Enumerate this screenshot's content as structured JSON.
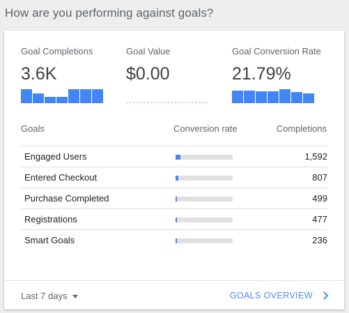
{
  "page": {
    "title": "How are you performing against goals?"
  },
  "metrics": [
    {
      "label": "Goal Completions",
      "value": "3.6K",
      "spark": [
        1.0,
        0.7,
        0.45,
        0.45,
        1.0,
        1.0,
        1.0
      ]
    },
    {
      "label": "Goal Value",
      "value": "$0.00",
      "spark": []
    },
    {
      "label": "Goal Conversion Rate",
      "value": "21.79%",
      "spark": [
        0.9,
        0.9,
        0.85,
        0.85,
        1.0,
        0.8,
        0.7
      ]
    }
  ],
  "table": {
    "headers": {
      "goals": "Goals",
      "rate": "Conversion rate",
      "completions": "Completions"
    },
    "rows": [
      {
        "name": "Engaged Users",
        "rate": 0.09,
        "completions": "1,592"
      },
      {
        "name": "Entered Checkout",
        "rate": 0.05,
        "completions": "807"
      },
      {
        "name": "Purchase Completed",
        "rate": 0.03,
        "completions": "499"
      },
      {
        "name": "Registrations",
        "rate": 0.03,
        "completions": "477"
      },
      {
        "name": "Smart Goals",
        "rate": 0.02,
        "completions": "236"
      }
    ]
  },
  "footer": {
    "date_range": "Last 7 days",
    "overview_label": "GOALS OVERVIEW"
  },
  "colors": {
    "accent": "#4285f4",
    "link": "#4a8af4"
  },
  "icons": {
    "date_range": "caret-down-icon",
    "overview": "chevron-right-icon"
  }
}
